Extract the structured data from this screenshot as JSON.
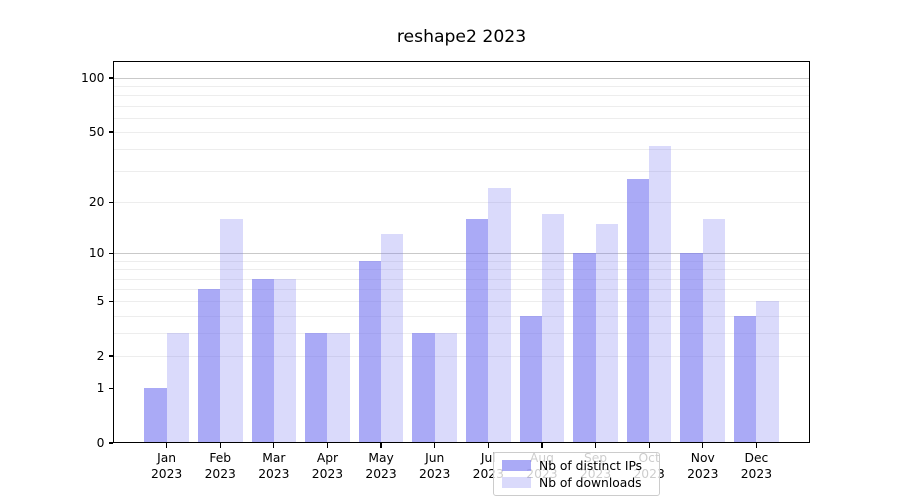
{
  "chart_data": {
    "type": "bar",
    "title": "reshape2 2023",
    "categories": [
      "Jan",
      "Feb",
      "Mar",
      "Apr",
      "May",
      "Jun",
      "Jul",
      "Aug",
      "Sep",
      "Oct",
      "Nov",
      "Dec"
    ],
    "category_year": "2023",
    "series": [
      {
        "name": "Nb of distinct IPs",
        "color": "rgba(120,120,240,0.63)",
        "values": [
          1,
          6,
          7,
          3,
          9,
          3,
          16,
          4,
          10,
          27,
          10,
          4
        ]
      },
      {
        "name": "Nb of downloads",
        "color": "rgba(120,120,240,0.27)",
        "values": [
          3,
          16,
          7,
          3,
          13,
          3,
          24,
          17,
          15,
          42,
          16,
          5
        ]
      }
    ],
    "yscale": "log1p",
    "ylim": [
      0,
      125
    ],
    "ytick_values": [
      0,
      1,
      2,
      5,
      10,
      20,
      50,
      100
    ],
    "minor_gridline_values": [
      2,
      3,
      4,
      5,
      6,
      7,
      8,
      9,
      20,
      30,
      40,
      50,
      60,
      70,
      80,
      90
    ],
    "major_gridline_values": [
      10,
      100
    ],
    "legend_position": "lower center",
    "grid_on": true,
    "colors": {
      "axis": "#000000",
      "grid_minor": "#ededed",
      "grid_major": "#c9c9c9",
      "background": "#ffffff"
    }
  }
}
